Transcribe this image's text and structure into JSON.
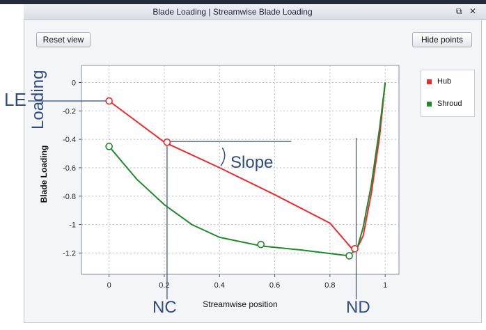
{
  "window": {
    "title": "Blade Loading | Streamwise Blade Loading",
    "float_icon": "restore-icon",
    "close_icon": "close-icon"
  },
  "toolbar": {
    "reset_label": "Reset view",
    "hide_points_label": "Hide points"
  },
  "colors": {
    "hub": "#ee2a2a",
    "shroud": "#1f8a2a",
    "annotation": "#2f4c82"
  },
  "annotations": {
    "le": "LE",
    "loading": "Loading",
    "slope": "Slope",
    "nc": "NC",
    "nd": "ND"
  },
  "chart_data": {
    "type": "line",
    "xlabel": "Streamwise position",
    "ylabel": "Blade Loading",
    "xlim": [
      -0.1,
      1.05
    ],
    "ylim": [
      -1.35,
      0.12
    ],
    "x_ticks": [
      0,
      0.2,
      0.4,
      0.6,
      0.8,
      1
    ],
    "x_tick_labels": [
      "0",
      "0.2",
      "0.4",
      "0.6",
      "0.8",
      "1"
    ],
    "y_ticks": [
      0,
      -0.2,
      -0.4,
      -0.6,
      -0.8,
      -1,
      -1.2
    ],
    "y_tick_labels": [
      "0",
      "-0.2",
      "-0.4",
      "-0.6",
      "-0.8",
      "-1",
      "-1.2"
    ],
    "grid": true,
    "legend_position": "top-right",
    "series": [
      {
        "name": "Hub",
        "color": "#ee2a2a",
        "x": [
          0,
          0.2,
          0.4,
          0.6,
          0.8,
          0.88,
          0.9,
          0.92,
          0.95,
          0.98,
          1.0
        ],
        "y": [
          -0.13,
          -0.42,
          -0.6,
          -0.79,
          -0.99,
          -1.17,
          -1.16,
          -1.08,
          -0.78,
          -0.38,
          0.0
        ],
        "points": [
          [
            0,
            -0.13
          ],
          [
            0.21,
            -0.42
          ],
          [
            0.89,
            -1.17
          ]
        ]
      },
      {
        "name": "Shroud",
        "color": "#1f8a2a",
        "x": [
          0,
          0.1,
          0.2,
          0.3,
          0.4,
          0.55,
          0.7,
          0.87,
          0.9,
          0.92,
          0.95,
          0.98,
          1.0
        ],
        "y": [
          -0.45,
          -0.68,
          -0.86,
          -1.0,
          -1.09,
          -1.15,
          -1.18,
          -1.22,
          -1.16,
          -1.02,
          -0.72,
          -0.32,
          0.0
        ],
        "points": [
          [
            0,
            -0.45
          ],
          [
            0.55,
            -1.14
          ],
          [
            0.87,
            -1.22
          ]
        ]
      }
    ]
  }
}
